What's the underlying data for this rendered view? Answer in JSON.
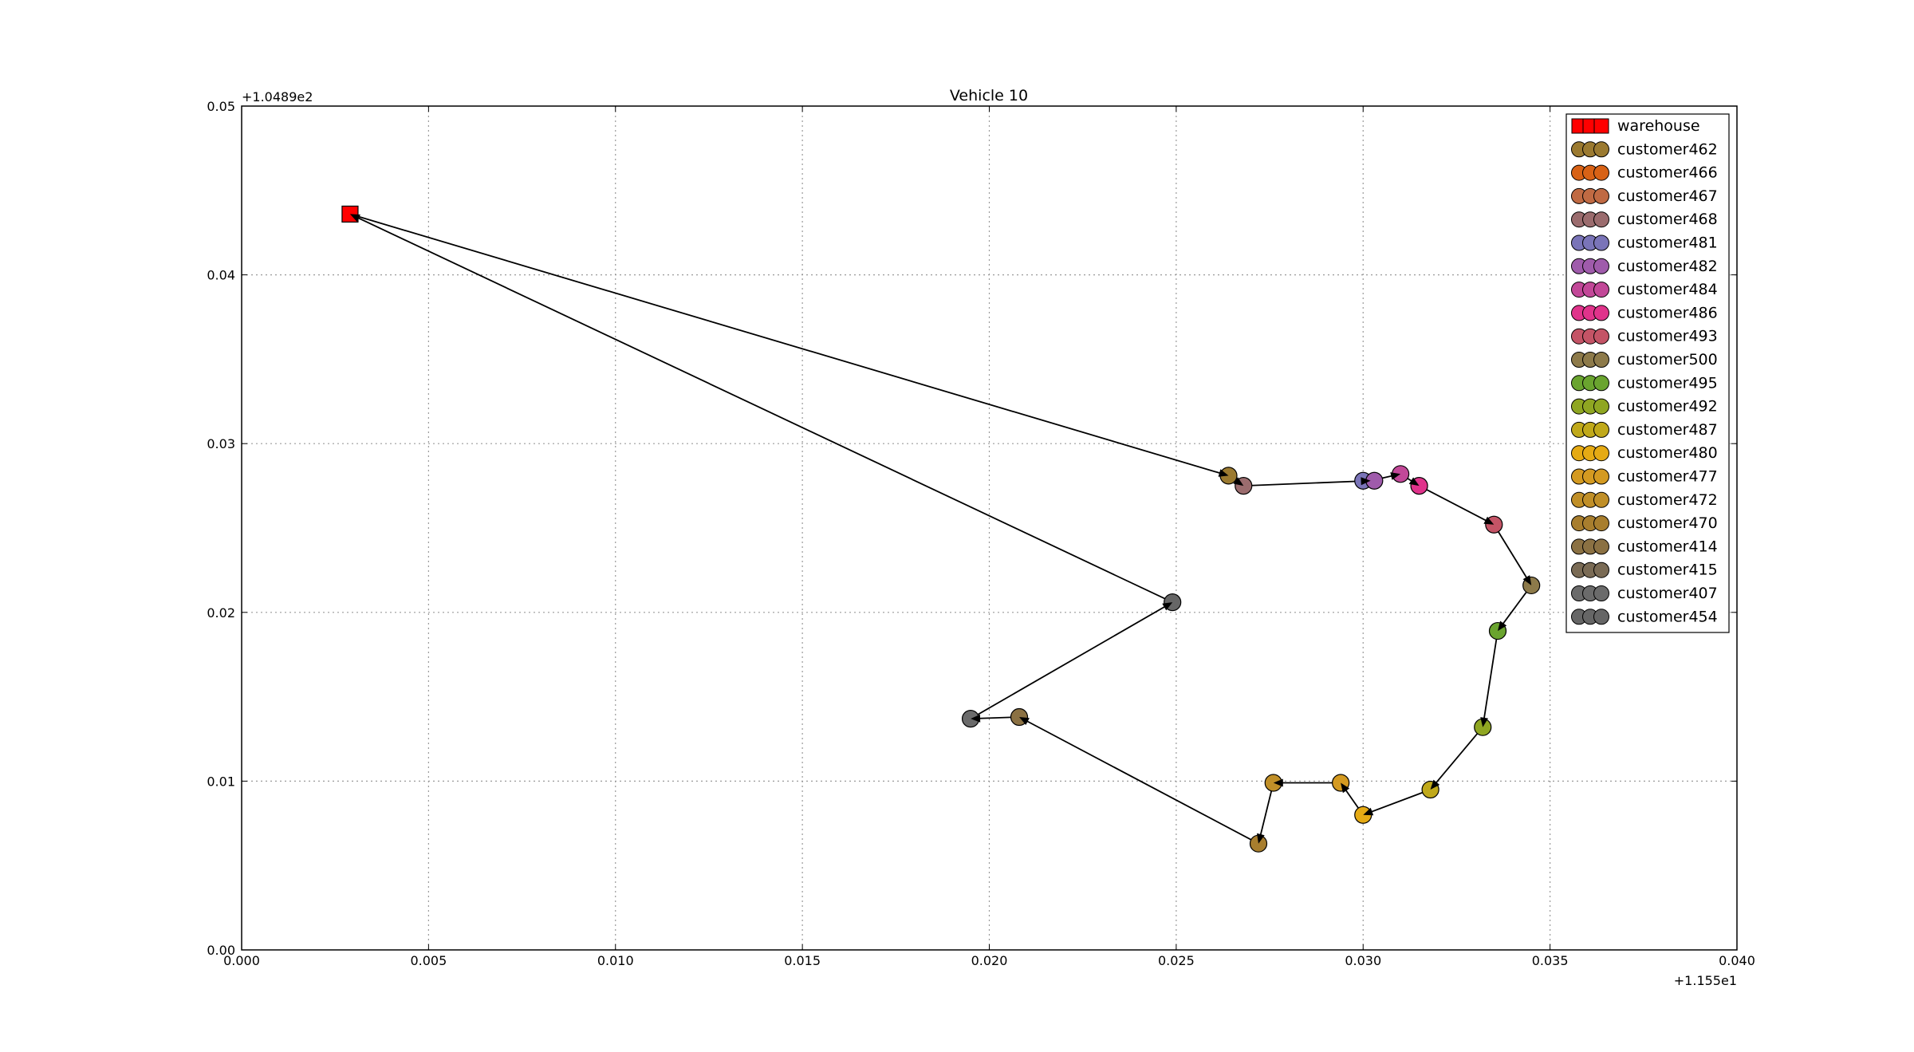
{
  "chart_data": {
    "type": "scatter",
    "title": "Vehicle 10",
    "xlabel": "",
    "ylabel": "",
    "x_offset_label": "+1.155e1",
    "y_offset_label": "+1.0489e2",
    "xlim": [
      0.0,
      0.04
    ],
    "ylim": [
      0.0,
      0.05
    ],
    "x_ticks": [
      "0.000",
      "0.005",
      "0.010",
      "0.015",
      "0.020",
      "0.025",
      "0.030",
      "0.035",
      "0.040"
    ],
    "y_ticks": [
      "0.00",
      "0.01",
      "0.02",
      "0.03",
      "0.04",
      "0.05"
    ],
    "grid": true,
    "legend_position": "top-right",
    "route": [
      [
        0.0029,
        0.0436
      ],
      [
        0.0264,
        0.0281
      ],
      [
        0.0268,
        0.0275
      ],
      [
        0.0302,
        0.0278
      ],
      [
        0.031,
        0.0282
      ],
      [
        0.0315,
        0.0275
      ],
      [
        0.0335,
        0.0252
      ],
      [
        0.0345,
        0.0216
      ],
      [
        0.0336,
        0.0189
      ],
      [
        0.0332,
        0.0132
      ],
      [
        0.0318,
        0.0095
      ],
      [
        0.03,
        0.008
      ],
      [
        0.0294,
        0.0099
      ],
      [
        0.0276,
        0.0099
      ],
      [
        0.0272,
        0.0063
      ],
      [
        0.0208,
        0.0138
      ],
      [
        0.0195,
        0.0137
      ],
      [
        0.0249,
        0.0206
      ],
      [
        0.0029,
        0.0436
      ]
    ],
    "series": [
      {
        "name": "warehouse",
        "marker": "square",
        "color": "#ff0000",
        "x": [
          0.0029
        ],
        "y": [
          0.0436
        ]
      },
      {
        "name": "customer462",
        "marker": "circle",
        "color": "#9b7a30",
        "x": [
          0.0264
        ],
        "y": [
          0.0281
        ]
      },
      {
        "name": "customer466",
        "marker": "circle",
        "color": "#d86216",
        "x": [],
        "y": []
      },
      {
        "name": "customer467",
        "marker": "circle",
        "color": "#c06a43",
        "x": [],
        "y": []
      },
      {
        "name": "customer468",
        "marker": "circle",
        "color": "#9b6c6e",
        "x": [
          0.0268
        ],
        "y": [
          0.0275
        ]
      },
      {
        "name": "customer481",
        "marker": "circle",
        "color": "#7a74b8",
        "x": [
          0.03
        ],
        "y": [
          0.0278
        ]
      },
      {
        "name": "customer482",
        "marker": "circle",
        "color": "#9f5bab",
        "x": [
          0.0303
        ],
        "y": [
          0.0278
        ]
      },
      {
        "name": "customer484",
        "marker": "circle",
        "color": "#c24898",
        "x": [
          0.031
        ],
        "y": [
          0.0282
        ]
      },
      {
        "name": "customer486",
        "marker": "circle",
        "color": "#e0338b",
        "x": [
          0.0315
        ],
        "y": [
          0.0275
        ]
      },
      {
        "name": "customer493",
        "marker": "circle",
        "color": "#c45466",
        "x": [
          0.0335
        ],
        "y": [
          0.0252
        ]
      },
      {
        "name": "customer500",
        "marker": "circle",
        "color": "#8d7a4a",
        "x": [
          0.0345
        ],
        "y": [
          0.0216
        ]
      },
      {
        "name": "customer495",
        "marker": "circle",
        "color": "#6aa42f",
        "x": [
          0.0336
        ],
        "y": [
          0.0189
        ]
      },
      {
        "name": "customer492",
        "marker": "circle",
        "color": "#8fa622",
        "x": [
          0.0332
        ],
        "y": [
          0.0132
        ]
      },
      {
        "name": "customer487",
        "marker": "circle",
        "color": "#c0a91b",
        "x": [
          0.0318
        ],
        "y": [
          0.0095
        ]
      },
      {
        "name": "customer480",
        "marker": "circle",
        "color": "#e5aa14",
        "x": [
          0.03
        ],
        "y": [
          0.008
        ]
      },
      {
        "name": "customer477",
        "marker": "circle",
        "color": "#d49a21",
        "x": [
          0.0294
        ],
        "y": [
          0.0099
        ]
      },
      {
        "name": "customer472",
        "marker": "circle",
        "color": "#c08f28",
        "x": [
          0.0276
        ],
        "y": [
          0.0099
        ]
      },
      {
        "name": "customer470",
        "marker": "circle",
        "color": "#a87e2e",
        "x": [
          0.0272
        ],
        "y": [
          0.0063
        ]
      },
      {
        "name": "customer414",
        "marker": "circle",
        "color": "#8b7143",
        "x": [
          0.0208
        ],
        "y": [
          0.0138
        ]
      },
      {
        "name": "customer415",
        "marker": "circle",
        "color": "#7a6b55",
        "x": [],
        "y": []
      },
      {
        "name": "customer407",
        "marker": "circle",
        "color": "#6b6b6b",
        "x": [
          0.0195
        ],
        "y": [
          0.0137
        ]
      },
      {
        "name": "customer454",
        "marker": "circle",
        "color": "#666666",
        "x": [
          0.0249
        ],
        "y": [
          0.0206
        ]
      }
    ]
  }
}
